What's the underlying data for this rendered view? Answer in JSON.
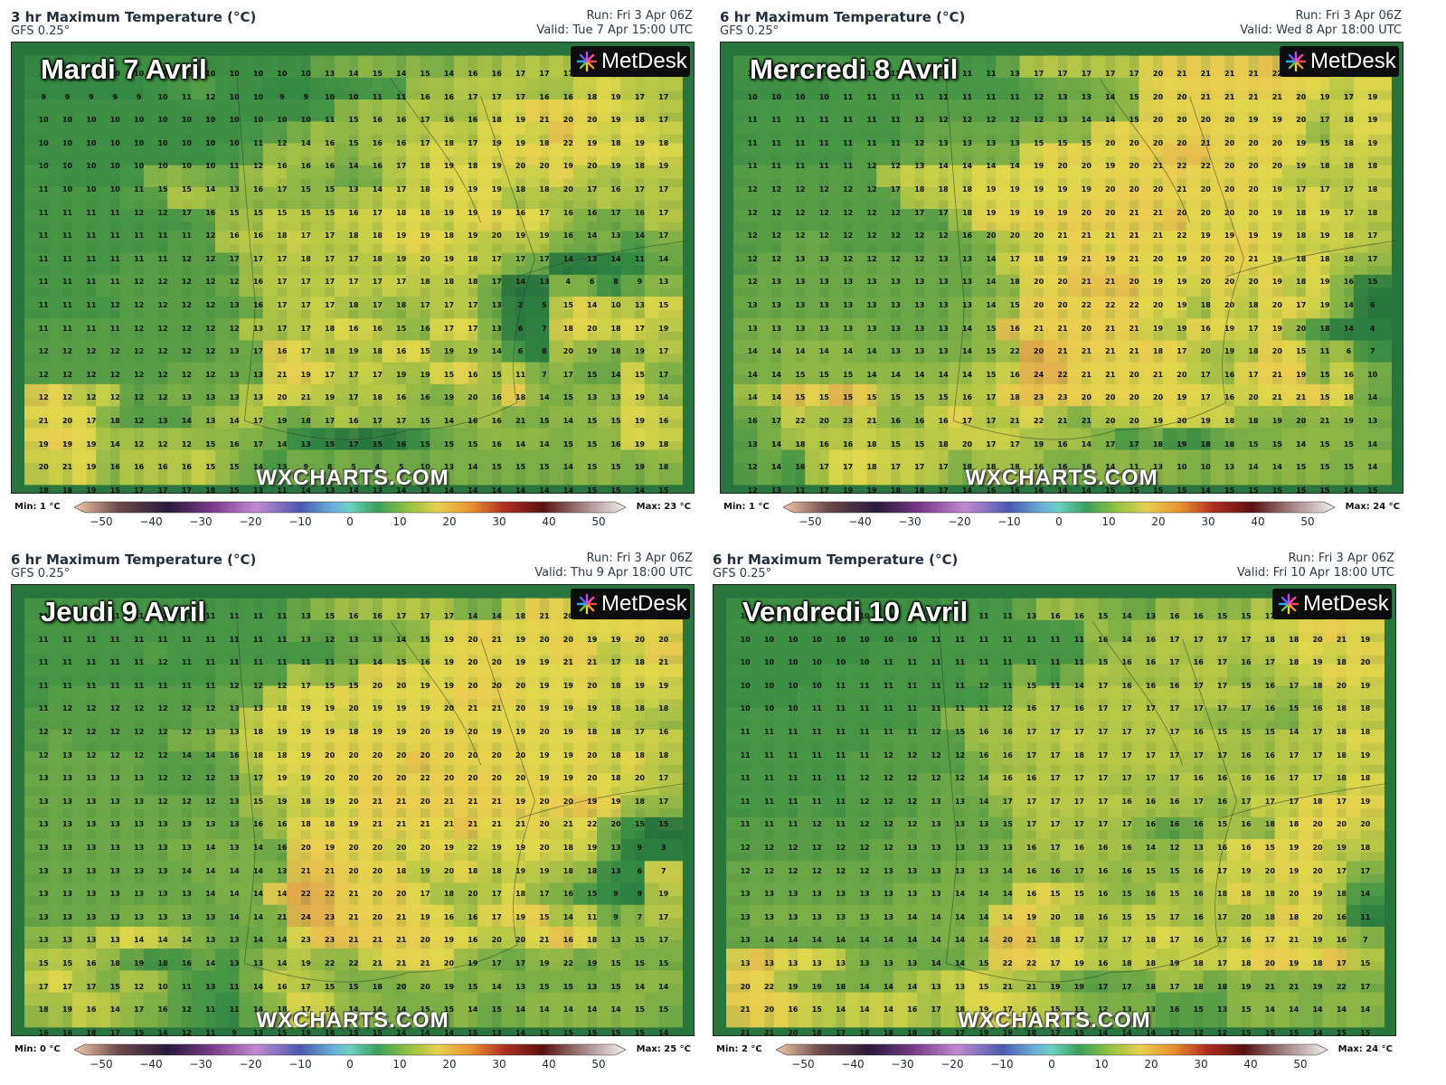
{
  "colorbar_ticks": [
    "−50",
    "−40",
    "−30",
    "−20",
    "−10",
    "0",
    "10",
    "20",
    "30",
    "40",
    "50"
  ],
  "brand": "MetDesk",
  "watermark": "WXCHARTS.COM",
  "colors": {
    "sea": "#1f7a3c",
    "land_warm": "#e8cf4a",
    "land_mid": "#a7c441",
    "mountain": "#2f8a4a"
  },
  "panels": [
    {
      "title": "3 hr Maximum Temperature (°C)",
      "model": "GFS 0.25°",
      "run": "Run: Fri 3 Apr 06Z",
      "valid": "Valid: Tue 7 Apr 15:00 UTC",
      "day_label": "Mardi 7 Avril",
      "min": "Min: 1 °C",
      "max": "Max: 23 °C",
      "rows": [
        "9 9 9 10 10 10 10 10 10 10 10 10 13 14 15 14 15 14 16 16 17 17 17 18 18 17 17",
        "9 9 9 9 9 10 11 12 10 10 9 9 10 10 11 11 16 16 17 17 17 16 16 18 19 17 17",
        "10 10 10 10 10 10 10 10 10 10 10 10 11 15 16 16 17 16 16 18 19 21 20 20 19 18 17",
        "10 10 10 10 10 10 10 10 10 11 12 14 16 15 16 16 17 18 17 19 19 18 22 19 18 19 18",
        "10 10 10 10 10 10 10 10 11 12 16 16 16 14 16 17 18 19 18 19 20 20 19 20 19 18 19",
        "11 10 10 10 11 15 15 14 13 16 17 15 15 13 14 17 18 19 19 19 18 18 20 17 16 17 17",
        "11 11 11 11 12 12 17 16 15 15 15 15 15 16 17 18 18 19 19 19 16 17 16 16 17 16 17",
        "11 11 11 11 11 11 11 12 16 16 18 17 17 18 18 19 19 18 19 20 19 19 16 14 13 14 17",
        "11 11 11 11 11 11 12 12 17 17 17 18 17 17 18 19 20 19 18 17 17 17 14 13 14 11 14",
        "11 11 11 11 12 12 12 12 12 16 17 17 17 17 17 17 18 18 18 17 14 13 4 6 8 9 13",
        "11 11 11 12 12 12 12 12 13 16 17 17 17 18 17 18 17 17 17 13 2 5 15 14 10 13 15",
        "11 11 11 11 12 12 12 12 12 13 17 17 18 16 16 15 16 17 17 13 6 7 18 20 18 17 19",
        "12 12 12 12 12 12 12 12 13 17 16 17 18 19 18 16 15 19 19 14 6 8 20 19 18 19 17",
        "12 12 12 12 12 12 12 12 13 13 21 19 17 17 17 19 19 15 16 15 11 7 17 15 14 15 17",
        "12 12 12 12 12 12 13 13 13 13 20 21 19 17 18 16 16 19 20 16 18 14 15 13 13 19 14",
        "21 20 17 18 12 13 14 13 14 17 19 18 17 16 17 17 15 14 16 16 21 15 14 15 15 19 16",
        "19 19 19 14 12 12 12 15 16 17 14 13 15 17 15 16 15 15 15 16 14 14 15 15 16 19 18",
        "20 21 19 16 16 16 16 15 15 14 13 9 8 5 4 5 10 13 14 15 15 15 14 15 15 19 18",
        "18 18 19 15 17 17 17 18 15 13 11 14 13 14 13 14 13 14 14 14 14 14 14 15 15 14 15"
      ]
    },
    {
      "title": "6 hr Maximum Temperature (°C)",
      "model": "GFS 0.25°",
      "run": "Run: Fri 3 Apr 06Z",
      "valid": "Valid: Wed 8 Apr 18:00 UTC",
      "day_label": "Mercredi 8 Avril",
      "min": "Min: 1 °C",
      "max": "Max: 24 °C",
      "rows": [
        "11 11 11 11 11 11 11 11 11 11 11 13 17 17 17 17 17 20 21 21 21 21 22 20 23 19 18",
        "10 10 10 10 11 11 11 11 11 11 11 11 12 13 13 14 15 20 20 21 21 21 21 20 19 17 19",
        "11 11 11 11 11 11 11 12 12 12 12 12 12 13 14 14 15 20 20 20 20 19 19 20 17 18 19",
        "11 11 11 11 11 11 11 12 13 13 13 13 15 15 15 20 20 20 20 21 20 20 20 19 15 18 19",
        "11 11 11 11 11 12 12 13 14 14 14 14 19 20 20 19 20 21 22 22 20 20 20 19 18 18 18",
        "12 12 12 12 12 12 17 18 18 18 19 19 19 19 19 20 20 20 21 20 20 20 19 17 17 17 18",
        "12 12 12 12 12 12 12 17 17 18 19 19 19 19 20 20 21 21 20 20 20 20 19 18 19 17 18",
        "12 12 12 12 12 12 12 12 12 16 20 20 20 21 21 21 21 21 22 19 19 19 19 18 19 18 17",
        "12 12 13 13 12 12 12 12 13 13 14 17 18 19 21 19 21 20 19 20 20 21 19 18 18 18 17",
        "12 13 13 13 13 13 13 13 13 13 14 18 20 20 21 21 20 19 19 20 20 20 19 18 19 16 15",
        "13 13 13 13 13 13 13 13 13 13 14 15 20 20 22 22 22 20 19 18 20 18 20 17 19 14 6",
        "13 13 13 13 13 13 13 13 13 14 15 16 21 21 20 21 21 19 19 16 19 17 19 20 18 14 4",
        "14 14 14 14 14 14 13 13 13 14 15 22 20 21 21 21 21 18 17 20 19 18 20 15 11 6 7",
        "14 14 15 15 15 14 14 14 14 14 15 16 24 22 21 21 20 21 20 17 16 17 21 19 15 16 10",
        "14 14 15 15 15 15 15 15 15 16 17 18 23 23 20 20 20 20 19 17 16 20 21 21 15 18 14",
        "16 17 22 20 23 21 16 16 16 17 17 21 22 21 21 20 20 19 20 19 18 18 19 20 21 19 13",
        "13 14 18 16 16 18 15 15 18 20 17 17 19 16 14 17 17 18 19 18 18 15 15 14 15 15 14",
        "12 14 16 17 17 18 17 17 17 18 18 18 16 16 16 14 11 13 10 10 13 14 14 15 15 15 14",
        "12 13 11 17 19 19 18 18 17 14 16 16 16 14 14 15 15 15 15 14 15 15 15 15 15 14 15"
      ]
    },
    {
      "title": "6 hr Maximum Temperature (°C)",
      "model": "GFS 0.25°",
      "run": "Run: Fri 3 Apr 06Z",
      "valid": "Valid: Thu 9 Apr 18:00 UTC",
      "day_label": "Jeudi 9 Avril",
      "min": "Min: 0 °C",
      "max": "Max: 25 °C",
      "rows": [
        "11 11 11 11 11 11 11 11 11 11 11 13 15 16 16 17 17 17 14 14 18 21 20 21 21 21 20",
        "11 11 11 11 11 11 11 11 11 11 11 13 12 13 13 14 15 19 20 21 19 20 20 19 19 20 20",
        "11 11 11 11 11 12 11 11 11 11 11 11 11 13 14 15 16 19 20 20 19 19 21 21 17 18 21",
        "11 11 11 11 11 11 11 11 12 12 12 17 15 15 20 20 19 19 20 20 20 19 19 20 18 19 19",
        "11 12 12 12 12 12 12 12 13 13 18 19 19 20 19 19 19 20 21 21 20 19 19 19 18 18 18",
        "12 12 12 12 12 12 12 13 13 18 19 19 19 18 19 19 20 19 20 19 19 20 19 18 18 17 16",
        "12 13 12 12 12 12 14 14 16 18 18 19 20 20 20 20 20 20 20 20 20 19 19 20 18 18 18",
        "13 13 13 13 13 12 12 12 13 17 19 19 20 20 20 20 22 20 20 20 20 19 19 20 18 20 17",
        "13 13 13 13 13 12 12 12 13 15 19 18 19 20 21 21 20 21 21 21 19 20 20 19 19 18 17",
        "13 13 13 13 13 13 13 13 13 16 16 18 18 19 21 21 21 21 21 21 21 20 21 22 20 15 15",
        "13 13 13 13 13 13 13 14 13 14 16 20 19 20 20 20 20 19 22 19 19 20 18 19 13 9 3",
        "13 13 13 13 13 13 14 14 14 14 13 21 21 20 20 18 19 20 18 18 19 19 18 18 13 6 7",
        "13 13 13 13 13 13 13 14 14 14 14 22 22 21 20 20 17 18 20 17 18 17 16 15 9 9 19",
        "13 13 13 13 13 13 13 13 14 14 21 24 23 21 20 21 19 16 16 17 19 15 14 11 9 7 17",
        "13 13 13 13 14 14 14 13 13 14 14 23 23 21 21 21 20 19 16 20 20 21 16 18 13 15 17",
        "15 15 16 18 19 18 16 14 13 13 14 19 22 22 21 21 21 20 19 17 17 19 22 19 15 15 15",
        "17 17 17 15 12 10 11 13 11 14 16 17 15 15 18 20 20 19 15 14 13 15 15 13 15 14 14",
        "18 19 16 14 17 16 12 11 11 14 18 17 16 14 14 14 15 15 14 15 14 14 14 14 14 15 15",
        "16 16 18 17 15 14 12 11 9 13 15 19 18 15 15 14 14 14 15 13 14 15 15 15 15 15 14"
      ]
    },
    {
      "title": "6 hr Maximum Temperature (°C)",
      "model": "GFS 0.25°",
      "run": "Run: Fri 3 Apr 06Z",
      "valid": "Valid: Fri 10 Apr 18:00 UTC",
      "day_label": "Vendredi 10 Avril",
      "min": "Min: 2 °C",
      "max": "Max: 24 °C",
      "rows": [
        "10 10 10 10 10 10 10 10 10 11 11 11 13 16 16 15 14 13 16 16 15 15 17 19 20 20 22",
        "10 10 10 10 10 10 10 10 11 11 11 11 11 11 11 16 14 16 17 17 17 17 18 18 20 21 19",
        "10 10 10 10 10 10 11 11 11 11 11 11 11 11 11 15 16 16 17 16 17 16 17 18 19 18 20",
        "10 10 10 10 11 11 11 11 11 11 12 11 15 11 14 17 16 16 16 17 17 15 16 17 18 20 19",
        "10 10 10 11 11 11 11 11 11 11 11 12 16 17 16 17 17 17 17 17 17 17 16 15 16 18 18",
        "11 11 11 11 11 11 11 11 12 15 16 16 17 17 17 17 17 17 17 16 15 15 15 14 17 18 18",
        "11 11 11 11 11 11 12 12 12 12 16 16 17 17 18 17 17 17 17 17 17 16 16 17 17 18 19",
        "11 11 11 11 11 12 12 12 12 12 14 16 16 17 17 17 17 17 17 16 16 16 16 17 17 18 18",
        "11 11 11 11 11 12 12 12 13 13 14 17 17 17 17 17 16 16 16 17 16 17 17 17 18 17 19",
        "11 11 11 12 11 12 12 12 13 13 13 15 17 17 17 17 17 16 16 16 15 16 18 18 20 20 20",
        "12 12 12 12 12 12 12 13 13 13 13 13 16 17 16 16 16 14 12 13 16 16 15 19 20 19 18",
        "12 12 12 12 12 12 13 13 13 13 13 14 16 16 17 16 16 15 15 16 17 19 20 19 20 17 17",
        "13 13 13 13 13 13 13 13 13 14 14 14 16 15 15 16 15 16 15 16 18 18 18 20 19 18 14",
        "13 13 13 13 13 13 13 14 14 14 14 14 19 20 18 16 15 15 17 16 17 20 18 18 20 16 11",
        "13 14 14 14 14 14 14 14 14 14 14 20 21 18 17 17 17 18 17 16 17 16 17 21 19 16 7",
        "13 13 13 13 13 13 13 13 14 14 15 22 22 17 19 16 18 18 19 18 17 18 20 19 18 17 15",
        "20 22 19 19 18 14 14 14 13 13 15 21 21 19 19 17 17 18 17 18 18 19 21 21 19 22 17",
        "21 20 16 15 14 14 14 16 17 18 19 17 16 15 13 12 13 13 16 15 13 15 14 14 14 14 14",
        "21 21 20 18 17 18 18 18 16 17 19 19 18 17 15 14 14 14 12 12 12 15 15 15 14 15 15"
      ]
    }
  ]
}
